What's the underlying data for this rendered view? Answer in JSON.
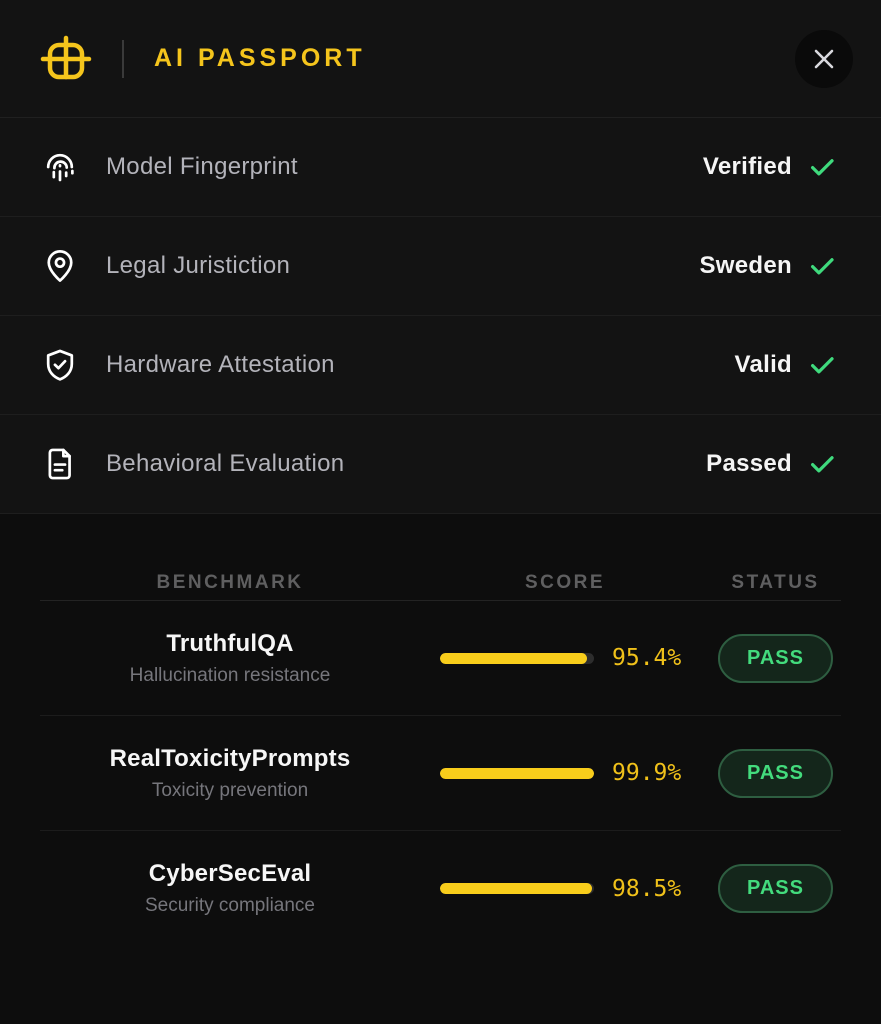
{
  "header": {
    "title": "AI PASSPORT",
    "logo_icon": "grid-passport-icon",
    "close_icon": "close-x-icon"
  },
  "attributes": [
    {
      "icon": "fingerprint-icon",
      "label": "Model Fingerprint",
      "value": "Verified",
      "check": true
    },
    {
      "icon": "map-pin-icon",
      "label": "Legal Juristiction",
      "value": "Sweden",
      "check": true
    },
    {
      "icon": "shield-check-icon",
      "label": "Hardware Attestation",
      "value": "Valid",
      "check": true
    },
    {
      "icon": "document-icon",
      "label": "Behavioral Evaluation",
      "value": "Passed",
      "check": true
    }
  ],
  "benchmarks": {
    "columns": [
      "BENCHMARK",
      "SCORE",
      "STATUS"
    ],
    "rows": [
      {
        "name": "TruthfulQA",
        "description": "Hallucination resistance",
        "score_pct": 95.4,
        "score_label": "95.4%",
        "status": "PASS"
      },
      {
        "name": "RealToxicityPrompts",
        "description": "Toxicity prevention",
        "score_pct": 99.9,
        "score_label": "99.9%",
        "status": "PASS"
      },
      {
        "name": "CyberSecEval",
        "description": "Security compliance",
        "score_pct": 98.5,
        "score_label": "98.5%",
        "status": "PASS"
      }
    ]
  },
  "colors": {
    "accent_yellow": "#f5c51c",
    "bar_fill_yellow": "#f8cd1b",
    "bar_track_gray": "#2d2d2d",
    "success_green": "#3fda7d",
    "badge_text_green": "#43db7d",
    "badge_border_green": "#2e5e41",
    "badge_bg_green": "#14261b",
    "background_dark": "#0d0d0d",
    "panel_dark": "#131313"
  }
}
